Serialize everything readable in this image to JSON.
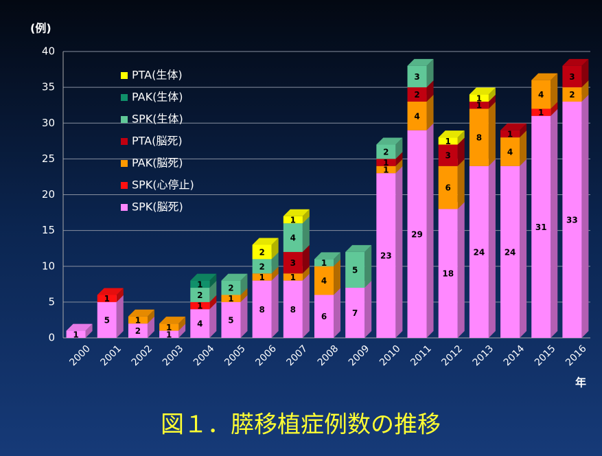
{
  "chart_data": {
    "type": "bar",
    "stacked": true,
    "title": "図１．膵移植症例数の推移",
    "y_label": "(例)",
    "x_label": "年",
    "categories": [
      "2000",
      "2001",
      "2002",
      "2003",
      "2004",
      "2005",
      "2006",
      "2007",
      "2008",
      "2009",
      "2010",
      "2011",
      "2012",
      "2013",
      "2014",
      "2015",
      "2016"
    ],
    "series": [
      {
        "name": "SPK(脳死)",
        "color": "#ff88ff",
        "values": [
          1,
          5,
          2,
          1,
          4,
          5,
          8,
          8,
          6,
          7,
          23,
          29,
          18,
          24,
          24,
          31,
          33
        ]
      },
      {
        "name": "SPK(心停止)",
        "color": "#ff1010",
        "values": [
          null,
          1,
          null,
          null,
          1,
          null,
          null,
          null,
          null,
          null,
          null,
          null,
          null,
          null,
          null,
          1,
          null
        ]
      },
      {
        "name": "PAK(脳死)",
        "color": "#ff9900",
        "values": [
          null,
          null,
          1,
          1,
          null,
          1,
          1,
          1,
          4,
          null,
          1,
          4,
          6,
          8,
          4,
          4,
          2
        ]
      },
      {
        "name": "PTA(脳死)",
        "color": "#c00010",
        "values": [
          null,
          null,
          null,
          null,
          null,
          null,
          null,
          3,
          null,
          null,
          1,
          2,
          3,
          1,
          1,
          null,
          3
        ]
      },
      {
        "name": "SPK(生体)",
        "color": "#60c898",
        "values": [
          null,
          null,
          null,
          null,
          2,
          2,
          2,
          4,
          1,
          5,
          2,
          3,
          null,
          null,
          null,
          null,
          null
        ]
      },
      {
        "name": "PAK(生体)",
        "color": "#10906a",
        "values": [
          null,
          null,
          null,
          null,
          1,
          null,
          null,
          null,
          null,
          null,
          null,
          null,
          null,
          null,
          null,
          null,
          null
        ]
      },
      {
        "name": "PTA(生体)",
        "color": "#ffff00",
        "values": [
          null,
          null,
          null,
          null,
          null,
          null,
          2,
          1,
          null,
          null,
          null,
          null,
          1,
          1,
          null,
          null,
          null
        ]
      }
    ],
    "ylim": [
      0,
      40
    ],
    "yticks": [
      0,
      5,
      10,
      15,
      20,
      25,
      30,
      35,
      40
    ],
    "grid": true,
    "legend": "upper left"
  }
}
